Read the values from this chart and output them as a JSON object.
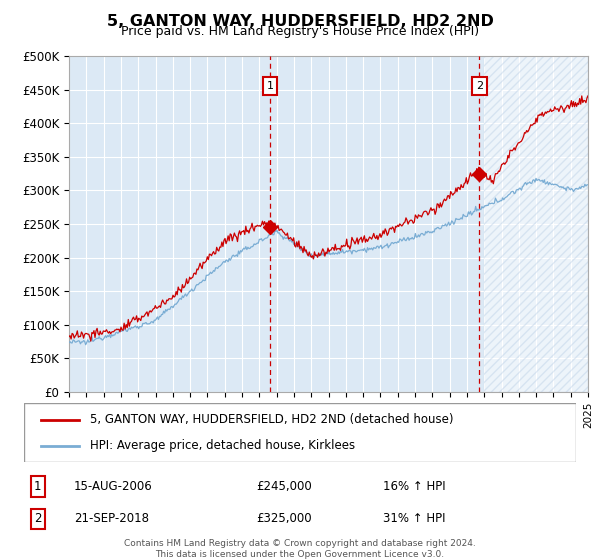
{
  "title": "5, GANTON WAY, HUDDERSFIELD, HD2 2ND",
  "subtitle": "Price paid vs. HM Land Registry's House Price Index (HPI)",
  "legend_line1": "5, GANTON WAY, HUDDERSFIELD, HD2 2ND (detached house)",
  "legend_line2": "HPI: Average price, detached house, Kirklees",
  "transaction1_date": "15-AUG-2006",
  "transaction1_price": "£245,000",
  "transaction1_hpi": "16% ↑ HPI",
  "transaction1_year": 2006.62,
  "transaction1_value": 245000,
  "transaction2_date": "21-SEP-2018",
  "transaction2_price": "£325,000",
  "transaction2_hpi": "31% ↑ HPI",
  "transaction2_year": 2018.72,
  "transaction2_value": 325000,
  "yticks": [
    0,
    50000,
    100000,
    150000,
    200000,
    250000,
    300000,
    350000,
    400000,
    450000,
    500000
  ],
  "ytick_labels": [
    "£0",
    "£50K",
    "£100K",
    "£150K",
    "£200K",
    "£250K",
    "£300K",
    "£350K",
    "£400K",
    "£450K",
    "£500K"
  ],
  "xmin": 1995,
  "xmax": 2025,
  "ymin": 0,
  "ymax": 500000,
  "plot_bg_color": "#dce9f5",
  "grid_color": "#ffffff",
  "red_color": "#cc0000",
  "blue_color": "#7aadd4",
  "footer_text": "Contains HM Land Registry data © Crown copyright and database right 2024.\nThis data is licensed under the Open Government Licence v3.0.",
  "fig_width": 6.0,
  "fig_height": 5.6,
  "dpi": 100
}
